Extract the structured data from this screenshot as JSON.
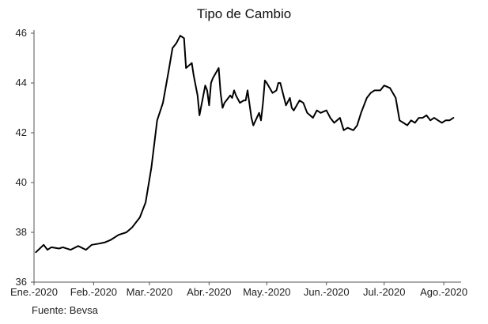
{
  "chart_data": {
    "type": "line",
    "title": "Tipo de Cambio",
    "xlabel": "",
    "ylabel": "",
    "source": "Fuente: Bevsa",
    "ylim": [
      36,
      46
    ],
    "yticks": [
      36,
      38,
      40,
      42,
      44,
      46
    ],
    "xlim": [
      "2020-01-01",
      "2020-08-10"
    ],
    "xticks": [
      {
        "date": "2020-01-01",
        "label": "Ene.-2020"
      },
      {
        "date": "2020-02-01",
        "label": "Feb.-2020"
      },
      {
        "date": "2020-03-01",
        "label": "Mar.-2020"
      },
      {
        "date": "2020-04-01",
        "label": "Abr.-2020"
      },
      {
        "date": "2020-05-01",
        "label": "May.-2020"
      },
      {
        "date": "2020-06-01",
        "label": "Jun.-2020"
      },
      {
        "date": "2020-07-01",
        "label": "Jul.-2020"
      },
      {
        "date": "2020-08-01",
        "label": "Ago.-2020"
      }
    ],
    "grid": false,
    "legend": "none",
    "colors": {
      "line": "#000000",
      "axis": "#555555",
      "text": "#222222"
    },
    "series": [
      {
        "x": [
          "2020-01-02",
          "2020-01-06",
          "2020-01-08",
          "2020-01-10",
          "2020-01-14",
          "2020-01-16",
          "2020-01-20",
          "2020-01-24",
          "2020-01-28",
          "2020-01-31",
          "2020-02-04",
          "2020-02-07",
          "2020-02-10",
          "2020-02-14",
          "2020-02-18",
          "2020-02-21",
          "2020-02-25",
          "2020-02-28",
          "2020-03-02",
          "2020-03-05",
          "2020-03-08",
          "2020-03-11",
          "2020-03-13",
          "2020-03-15",
          "2020-03-17",
          "2020-03-19",
          "2020-03-20",
          "2020-03-23",
          "2020-03-24",
          "2020-03-26",
          "2020-03-27",
          "2020-03-30",
          "2020-03-31",
          "2020-04-01",
          "2020-04-02",
          "2020-04-03",
          "2020-04-06",
          "2020-04-07",
          "2020-04-08",
          "2020-04-09",
          "2020-04-10",
          "2020-04-12",
          "2020-04-13",
          "2020-04-14",
          "2020-04-15",
          "2020-04-17",
          "2020-04-19",
          "2020-04-20",
          "2020-04-21",
          "2020-04-23",
          "2020-04-24",
          "2020-04-27",
          "2020-04-28",
          "2020-04-29",
          "2020-04-30",
          "2020-05-01",
          "2020-05-04",
          "2020-05-06",
          "2020-05-07",
          "2020-05-08",
          "2020-05-11",
          "2020-05-13",
          "2020-05-14",
          "2020-05-15",
          "2020-05-18",
          "2020-05-20",
          "2020-05-22",
          "2020-05-25",
          "2020-05-27",
          "2020-05-29",
          "2020-06-01",
          "2020-06-03",
          "2020-06-05",
          "2020-06-08",
          "2020-06-10",
          "2020-06-12",
          "2020-06-15",
          "2020-06-17",
          "2020-06-19",
          "2020-06-22",
          "2020-06-24",
          "2020-06-26",
          "2020-06-29",
          "2020-07-01",
          "2020-07-04",
          "2020-07-07",
          "2020-07-09",
          "2020-07-11",
          "2020-07-13",
          "2020-07-15",
          "2020-07-17",
          "2020-07-19",
          "2020-07-21",
          "2020-07-23",
          "2020-07-25",
          "2020-07-27",
          "2020-07-29",
          "2020-07-31",
          "2020-08-02",
          "2020-08-04",
          "2020-08-06"
        ],
        "values": [
          37.2,
          37.5,
          37.3,
          37.4,
          37.35,
          37.4,
          37.3,
          37.45,
          37.3,
          37.5,
          37.55,
          37.6,
          37.7,
          37.9,
          38.0,
          38.2,
          38.6,
          39.2,
          40.6,
          42.5,
          43.2,
          44.5,
          45.4,
          45.6,
          45.9,
          45.8,
          44.6,
          44.8,
          44.3,
          43.5,
          42.7,
          43.9,
          43.7,
          43.1,
          44.0,
          44.2,
          44.6,
          43.6,
          43.0,
          43.2,
          43.3,
          43.5,
          43.4,
          43.7,
          43.5,
          43.2,
          43.3,
          43.3,
          43.7,
          42.6,
          42.3,
          42.8,
          42.5,
          43.2,
          44.1,
          44.0,
          43.6,
          43.7,
          44.0,
          44.0,
          43.1,
          43.4,
          43.0,
          42.9,
          43.3,
          43.2,
          42.8,
          42.6,
          42.9,
          42.8,
          42.9,
          42.6,
          42.4,
          42.6,
          42.1,
          42.2,
          42.1,
          42.3,
          42.8,
          43.4,
          43.6,
          43.7,
          43.7,
          43.9,
          43.8,
          43.4,
          42.5,
          42.4,
          42.3,
          42.5,
          42.4,
          42.6,
          42.6,
          42.7,
          42.5,
          42.6,
          42.5,
          42.4,
          42.5,
          42.5,
          42.6
        ]
      }
    ]
  }
}
